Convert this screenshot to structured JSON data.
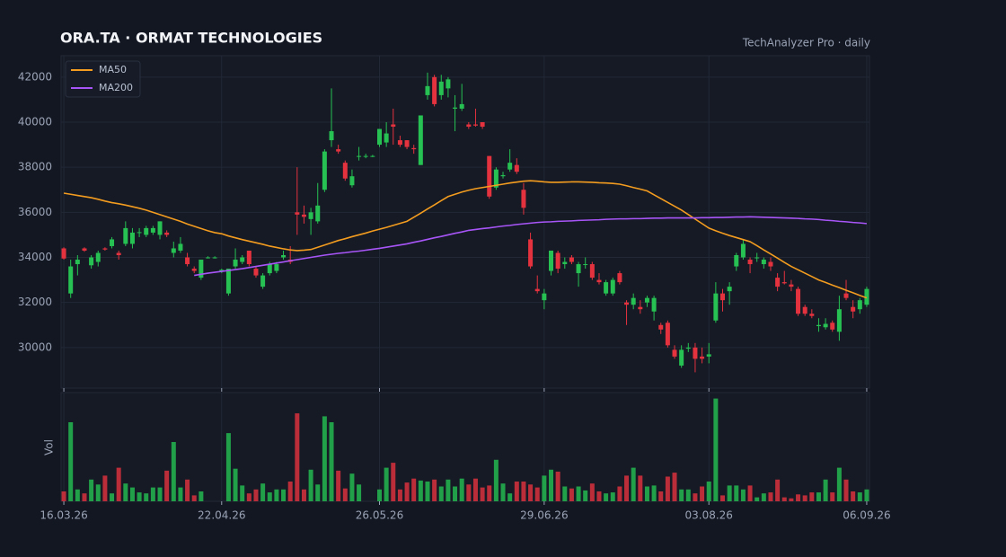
{
  "chart_data": {
    "type": "candlestick",
    "title": "ORA.TA  ·  ORMAT TECHNOLOGIES",
    "subtitle": "TechAnalyzer Pro · daily",
    "ylim": [
      28200,
      42950
    ],
    "yticks": [
      30000,
      32000,
      34000,
      36000,
      38000,
      40000,
      42000
    ],
    "xlim": [
      -0.4,
      117.4
    ],
    "xticks": [
      {
        "value": 0,
        "label": "16.03.26"
      },
      {
        "value": 23,
        "label": "22.04.26"
      },
      {
        "value": 46,
        "label": "26.05.26"
      },
      {
        "value": 70,
        "label": "29.06.26"
      },
      {
        "value": 94,
        "label": "03.08.26"
      },
      {
        "value": 117,
        "label": "06.09.26"
      }
    ],
    "grid": true,
    "legend": "top-left",
    "up_color": "#26c152",
    "down_color": "#e5323f",
    "open": [
      34400,
      32400,
      33700,
      34400,
      33650,
      33800,
      34400,
      34500,
      34200,
      34600,
      34600,
      35100,
      35000,
      35100,
      35000,
      35100,
      34200,
      34300,
      34000,
      33500,
      33100,
      34000,
      34000,
      33400,
      32400,
      33600,
      33800,
      34300,
      33500,
      32700,
      33300,
      33400,
      34000,
      33900,
      36000,
      35900,
      35700,
      35600,
      37000,
      39200,
      38800,
      38200,
      37200,
      38500,
      38500,
      38500,
      39000,
      39100,
      39900,
      39200,
      39200,
      38850,
      38100,
      41200,
      42000,
      41200,
      41500,
      40600,
      40600,
      39900,
      39900,
      40000,
      38500,
      37100,
      37600,
      37900,
      38100,
      37000,
      34800,
      32600,
      32100,
      33400,
      34200,
      33700,
      34000,
      33300,
      33700,
      33700,
      33000,
      32400,
      32400,
      33300,
      32000,
      31900,
      31800,
      32000,
      31600,
      31000,
      31100,
      29900,
      29200,
      29950,
      30000,
      29600,
      29600,
      31200,
      32400,
      32500,
      33600,
      34000,
      33900,
      34000,
      33700,
      33800,
      33100,
      32900,
      32800,
      32600,
      31800,
      31500,
      30950,
      30900,
      31100,
      30700,
      32400,
      31800,
      31700,
      31900
    ],
    "high": [
      34450,
      33900,
      34100,
      34450,
      34100,
      34300,
      34450,
      34900,
      34300,
      35600,
      35300,
      35300,
      35400,
      35400,
      35600,
      35200,
      34700,
      34900,
      34200,
      33600,
      33900,
      34050,
      34050,
      33500,
      33500,
      34400,
      34100,
      34300,
      33600,
      33300,
      33800,
      33800,
      34300,
      34500,
      38000,
      36300,
      36200,
      37300,
      38800,
      41500,
      39000,
      38300,
      37900,
      38900,
      38600,
      38550,
      39700,
      40000,
      40600,
      39400,
      39200,
      39000,
      40300,
      42200,
      42100,
      42100,
      42000,
      41200,
      41700,
      40000,
      40600,
      40000,
      38500,
      38000,
      37800,
      38800,
      38400,
      37300,
      35100,
      33200,
      32600,
      34300,
      34300,
      34000,
      34100,
      33800,
      34000,
      33800,
      33300,
      33000,
      33100,
      33400,
      32100,
      32400,
      32100,
      32300,
      32300,
      31100,
      31200,
      30100,
      30100,
      30200,
      30200,
      30000,
      30200,
      32900,
      32600,
      32900,
      34200,
      34800,
      34000,
      34200,
      34000,
      34000,
      33300,
      33400,
      33000,
      32700,
      31900,
      31700,
      31300,
      31300,
      31200,
      32300,
      33000,
      32100,
      32200,
      32700
    ],
    "low": [
      33900,
      32200,
      33200,
      34250,
      33500,
      33600,
      34300,
      34400,
      33900,
      34500,
      34400,
      34900,
      34900,
      35000,
      34800,
      34900,
      34000,
      34200,
      33600,
      33300,
      33000,
      33950,
      33950,
      33300,
      32300,
      33500,
      33700,
      33600,
      33100,
      32600,
      33200,
      33300,
      33900,
      33700,
      35000,
      35500,
      35000,
      35500,
      36900,
      38900,
      38600,
      37400,
      37100,
      38300,
      38400,
      38450,
      38900,
      38900,
      39000,
      38900,
      38800,
      38600,
      38100,
      41000,
      40700,
      41000,
      41100,
      39600,
      40500,
      39700,
      39800,
      39700,
      36600,
      37000,
      37500,
      37800,
      37700,
      35900,
      33500,
      32400,
      31700,
      33200,
      33300,
      33500,
      33700,
      32700,
      33500,
      33000,
      32800,
      32300,
      32300,
      32800,
      31000,
      31700,
      31500,
      31800,
      31200,
      30600,
      30000,
      29500,
      29100,
      29800,
      28900,
      29300,
      29300,
      31100,
      31600,
      31900,
      33400,
      33900,
      33300,
      33800,
      33500,
      33400,
      32500,
      32800,
      32500,
      31400,
      31400,
      31300,
      30700,
      30800,
      30700,
      30300,
      32100,
      31300,
      31500,
      31800
    ],
    "close": [
      33950,
      33600,
      33900,
      34300,
      34000,
      34200,
      34350,
      34800,
      34100,
      35300,
      35100,
      35120,
      35300,
      35300,
      35600,
      35000,
      34400,
      34600,
      33700,
      33400,
      33900,
      34000,
      34000,
      33450,
      33500,
      33900,
      34000,
      33700,
      33200,
      33200,
      33700,
      33700,
      34100,
      33800,
      35900,
      35800,
      36000,
      36300,
      38700,
      39600,
      38700,
      37500,
      37600,
      38500,
      38500,
      38500,
      39700,
      39500,
      39800,
      39000,
      38900,
      38800,
      40300,
      41600,
      40800,
      41800,
      41900,
      40650,
      40800,
      39800,
      39850,
      39800,
      36700,
      37900,
      37650,
      38200,
      37800,
      36200,
      33600,
      32500,
      32400,
      34300,
      33500,
      33800,
      33800,
      33700,
      33700,
      33100,
      32900,
      32900,
      33000,
      32900,
      31900,
      32200,
      31700,
      32200,
      32200,
      30800,
      30100,
      29600,
      29900,
      30000,
      29500,
      29500,
      29700,
      32400,
      32100,
      32700,
      34100,
      34600,
      33700,
      34000,
      33900,
      33600,
      32700,
      32850,
      32700,
      31500,
      31500,
      31400,
      31000,
      31050,
      30800,
      31700,
      32200,
      31600,
      32100,
      32600
    ],
    "series": [
      {
        "name": "MA50",
        "color": "#f39c1f",
        "values": [
          36850,
          36800,
          36750,
          36700,
          36650,
          36580,
          36500,
          36430,
          36380,
          36320,
          36250,
          36180,
          36100,
          36000,
          35900,
          35800,
          35700,
          35600,
          35480,
          35380,
          35280,
          35180,
          35100,
          35050,
          34950,
          34870,
          34790,
          34720,
          34650,
          34580,
          34500,
          34440,
          34380,
          34330,
          34300,
          34320,
          34350,
          34450,
          34550,
          34650,
          34750,
          34830,
          34920,
          35000,
          35080,
          35170,
          35250,
          35330,
          35420,
          35510,
          35600,
          35780,
          35960,
          36150,
          36330,
          36520,
          36700,
          36800,
          36900,
          36980,
          37050,
          37100,
          37150,
          37200,
          37250,
          37300,
          37340,
          37380,
          37400,
          37380,
          37350,
          37330,
          37330,
          37340,
          37350,
          37350,
          37340,
          37330,
          37310,
          37300,
          37280,
          37250,
          37180,
          37100,
          37030,
          36950,
          36780,
          36610,
          36440,
          36270,
          36100,
          35900,
          35700,
          35500,
          35300,
          35180,
          35070,
          34970,
          34880,
          34790,
          34700,
          34520,
          34330,
          34150,
          33970,
          33780,
          33600,
          33450,
          33300,
          33150,
          33000,
          32890,
          32770,
          32660,
          32540,
          32430,
          32310,
          32200
        ]
      },
      {
        "name": "MA200",
        "color": "#a855f7",
        "values": [
          null,
          null,
          null,
          null,
          null,
          null,
          null,
          null,
          null,
          null,
          null,
          null,
          null,
          null,
          null,
          null,
          null,
          null,
          null,
          33200,
          33250,
          33300,
          33340,
          33380,
          33420,
          33460,
          33500,
          33550,
          33600,
          33650,
          33700,
          33750,
          33800,
          33850,
          33900,
          33950,
          34000,
          34050,
          34100,
          34140,
          34180,
          34210,
          34250,
          34280,
          34320,
          34360,
          34400,
          34450,
          34500,
          34550,
          34600,
          34670,
          34730,
          34800,
          34870,
          34930,
          35000,
          35070,
          35130,
          35200,
          35240,
          35280,
          35310,
          35350,
          35390,
          35420,
          35460,
          35490,
          35520,
          35550,
          35570,
          35580,
          35600,
          35610,
          35620,
          35640,
          35650,
          35660,
          35670,
          35690,
          35700,
          35710,
          35710,
          35720,
          35720,
          35730,
          35740,
          35740,
          35750,
          35750,
          35750,
          35750,
          35750,
          35760,
          35760,
          35770,
          35770,
          35780,
          35790,
          35790,
          35800,
          35790,
          35780,
          35770,
          35760,
          35750,
          35740,
          35730,
          35710,
          35700,
          35680,
          35650,
          35630,
          35600,
          35580,
          35550,
          35530,
          35500
        ]
      }
    ],
    "volume": {
      "label": "Vol",
      "ylim": [
        0,
        1100
      ],
      "values": [
        100,
        800,
        120,
        80,
        220,
        170,
        260,
        80,
        340,
        180,
        140,
        90,
        80,
        140,
        140,
        310,
        600,
        140,
        220,
        60,
        100,
        0,
        0,
        0,
        690,
        330,
        160,
        80,
        120,
        180,
        90,
        120,
        120,
        200,
        890,
        120,
        320,
        170,
        860,
        800,
        310,
        130,
        280,
        170,
        0,
        0,
        120,
        340,
        390,
        120,
        190,
        230,
        210,
        200,
        220,
        150,
        220,
        150,
        230,
        170,
        230,
        140,
        160,
        420,
        180,
        80,
        200,
        200,
        170,
        140,
        260,
        320,
        300,
        150,
        130,
        150,
        110,
        180,
        100,
        80,
        90,
        150,
        260,
        340,
        260,
        150,
        160,
        100,
        250,
        290,
        120,
        120,
        80,
        150,
        200,
        1040,
        60,
        160,
        160,
        120,
        160,
        40,
        80,
        90,
        220,
        40,
        30,
        70,
        60,
        90,
        90,
        220,
        90,
        340,
        220,
        100,
        90,
        120
      ]
    }
  }
}
